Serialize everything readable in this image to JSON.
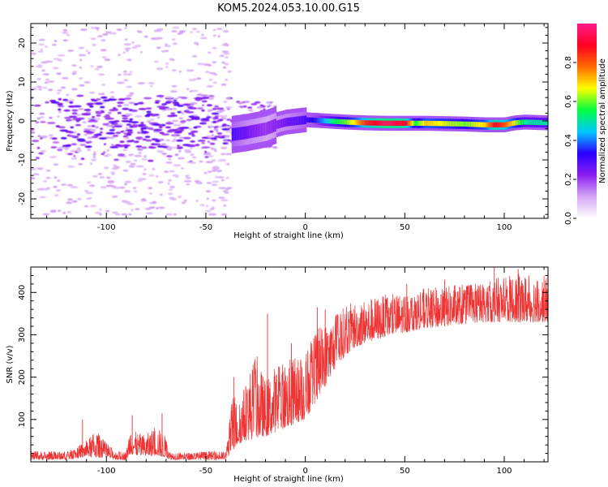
{
  "chart_data": [
    {
      "type": "heatmap",
      "title": "KOM5.2024.053.10.00.G15",
      "xlabel": "Height of straight line (km)",
      "ylabel": "Frequency (Hz)",
      "xlim": [
        -138,
        122
      ],
      "ylim": [
        -25,
        25
      ],
      "x_ticks": [
        -100,
        -50,
        0,
        50,
        100
      ],
      "y_ticks": [
        -20,
        -10,
        0,
        10,
        20
      ],
      "colorbar": {
        "label": "Normalized spectral amplitude",
        "range": [
          0,
          1
        ],
        "ticks": [
          "0.0",
          "0.2",
          "0.4",
          "0.6",
          "0.8"
        ],
        "colors": [
          "#ffffff",
          "#d6a8f5",
          "#8a1ef0",
          "#2a00ff",
          "#00c8ff",
          "#00ff40",
          "#ffff00",
          "#ff6a00",
          "#ff0020",
          "#ff1a8c"
        ]
      },
      "trace": {
        "points": [
          [
            -37,
            -3.5
          ],
          [
            -30,
            -3
          ],
          [
            -25,
            -2.5
          ],
          [
            -20,
            -2
          ],
          [
            -15,
            -1
          ],
          [
            -10,
            -0.3
          ],
          [
            -5,
            0
          ],
          [
            0,
            0.3
          ],
          [
            10,
            0
          ],
          [
            20,
            -0.3
          ],
          [
            30,
            -0.5
          ],
          [
            40,
            -0.6
          ],
          [
            50,
            -0.6
          ],
          [
            60,
            -0.6
          ],
          [
            70,
            -0.7
          ],
          [
            80,
            -0.8
          ],
          [
            90,
            -1
          ],
          [
            100,
            -1
          ],
          [
            105,
            -0.5
          ],
          [
            110,
            -0.3
          ],
          [
            122,
            -0.5
          ]
        ],
        "peak_amplitude": [
          [
            -37,
            0.3
          ],
          [
            -30,
            0.25
          ],
          [
            -20,
            0.2
          ],
          [
            -10,
            0.25
          ],
          [
            0,
            0.3
          ],
          [
            5,
            0.35
          ],
          [
            10,
            0.45
          ],
          [
            15,
            0.55
          ],
          [
            20,
            0.6
          ],
          [
            25,
            0.7
          ],
          [
            30,
            0.85
          ],
          [
            40,
            0.95
          ],
          [
            50,
            0.9
          ],
          [
            55,
            0.55
          ],
          [
            60,
            0.7
          ],
          [
            70,
            0.65
          ],
          [
            80,
            0.6
          ],
          [
            90,
            0.7
          ],
          [
            95,
            0.9
          ],
          [
            100,
            0.8
          ],
          [
            110,
            0.5
          ],
          [
            122,
            0.5
          ]
        ]
      }
    },
    {
      "type": "line",
      "xlabel": "Height of straight line (km)",
      "ylabel": "SNR (v/v)",
      "xlim": [
        -138,
        122
      ],
      "ylim": [
        0,
        460
      ],
      "x_ticks": [
        -100,
        -50,
        0,
        50,
        100
      ],
      "y_ticks": [
        100,
        200,
        300,
        400
      ],
      "line_color": "#ee3333",
      "envelope": {
        "x": [
          -138,
          -120,
          -115,
          -110,
          -105,
          -100,
          -95,
          -90,
          -88,
          -85,
          -80,
          -75,
          -70,
          -68,
          -60,
          -50,
          -40,
          -36,
          -34,
          -30,
          -25,
          -20,
          -15,
          -10,
          -5,
          0,
          5,
          10,
          15,
          20,
          25,
          30,
          40,
          50,
          60,
          70,
          80,
          90,
          100,
          110,
          122
        ],
        "low": [
          5,
          5,
          8,
          12,
          10,
          8,
          5,
          5,
          18,
          15,
          12,
          15,
          10,
          5,
          5,
          5,
          5,
          30,
          40,
          50,
          55,
          60,
          70,
          80,
          90,
          100,
          140,
          180,
          220,
          250,
          270,
          280,
          295,
          305,
          315,
          320,
          325,
          330,
          330,
          330,
          330
        ],
        "high": [
          25,
          25,
          35,
          50,
          75,
          45,
          25,
          25,
          90,
          70,
          65,
          85,
          60,
          25,
          22,
          25,
          25,
          180,
          130,
          190,
          260,
          190,
          230,
          240,
          250,
          260,
          310,
          330,
          350,
          370,
          380,
          385,
          395,
          400,
          410,
          415,
          420,
          425,
          440,
          445,
          440
        ]
      },
      "spikes": [
        [
          -112,
          100
        ],
        [
          -87,
          110
        ],
        [
          -72,
          115
        ],
        [
          -36,
          200
        ],
        [
          -19,
          350
        ],
        [
          -7,
          280
        ],
        [
          6,
          365
        ],
        [
          10,
          360
        ],
        [
          51,
          420
        ],
        [
          70,
          430
        ],
        [
          95,
          460
        ],
        [
          107,
          455
        ]
      ]
    }
  ]
}
